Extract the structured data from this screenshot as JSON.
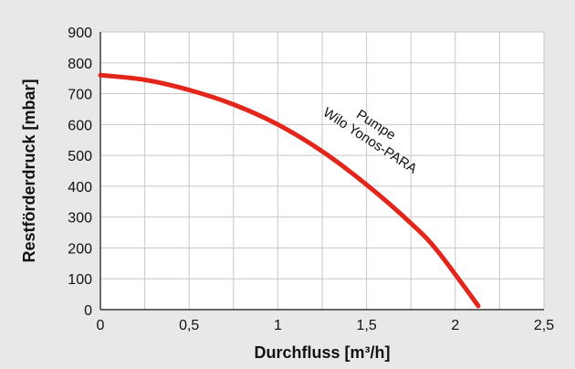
{
  "chart_data": {
    "type": "line",
    "xlabel": "Durchfluss [m³/h]",
    "ylabel": "Restförderdruck [mbar]",
    "xlim": [
      0,
      2.5
    ],
    "ylim": [
      0,
      900
    ],
    "x_ticks": [
      "0",
      "0,5",
      "1",
      "1,5",
      "2",
      "2,5"
    ],
    "y_ticks": [
      "0",
      "100",
      "200",
      "300",
      "400",
      "500",
      "600",
      "700",
      "800",
      "900"
    ],
    "grid": true,
    "series": [
      {
        "name": "Pumpe Wilo Yonos-PARA",
        "color": "#e3261b",
        "x": [
          0,
          0.25,
          0.5,
          0.75,
          1.0,
          1.25,
          1.5,
          1.75,
          1.9,
          2.13
        ],
        "y": [
          760,
          745,
          712,
          665,
          600,
          513,
          405,
          280,
          190,
          12
        ]
      }
    ],
    "annotation": {
      "line1": "Pumpe",
      "line2": "Wilo Yonos-PARA",
      "x": 1.55,
      "y": 520
    }
  }
}
